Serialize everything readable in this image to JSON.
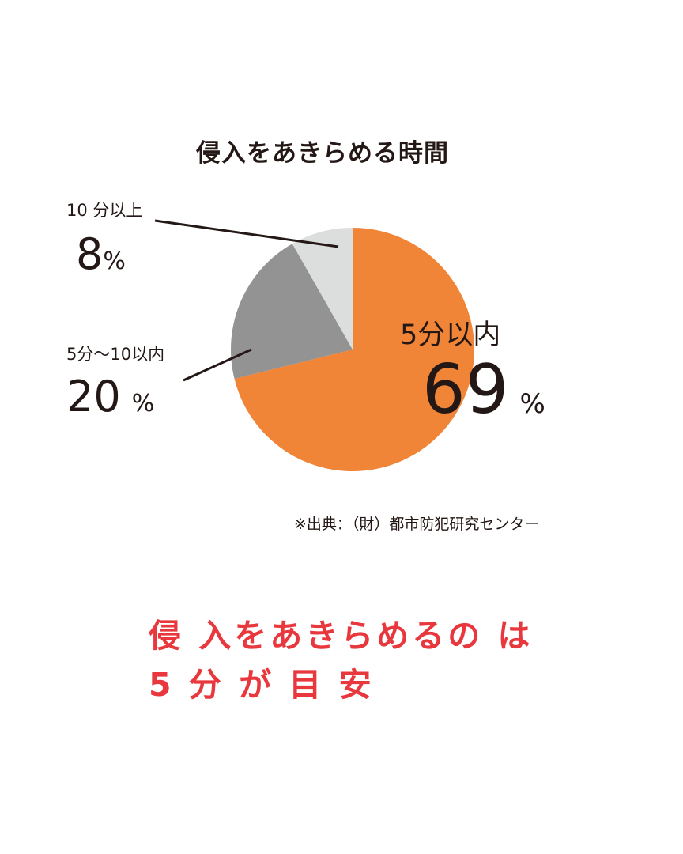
{
  "chart_data": {
    "type": "pie",
    "title": "侵入をあきらめる時間",
    "slices": [
      {
        "label": "5分以内",
        "value": 69,
        "value_text": "69",
        "color": "#f08437"
      },
      {
        "label": "5分〜10以内",
        "value": 20,
        "value_text": "20",
        "color": "#939394"
      },
      {
        "label": "10 分以上",
        "value": 8,
        "value_text": "8",
        "color": "#dcdddd"
      }
    ],
    "unit": "%",
    "source": "※出典：（財）都市防犯研究センター"
  },
  "headline": {
    "line1": "侵 入をあきらめるの は",
    "line2": "5 分 が 目 安"
  }
}
